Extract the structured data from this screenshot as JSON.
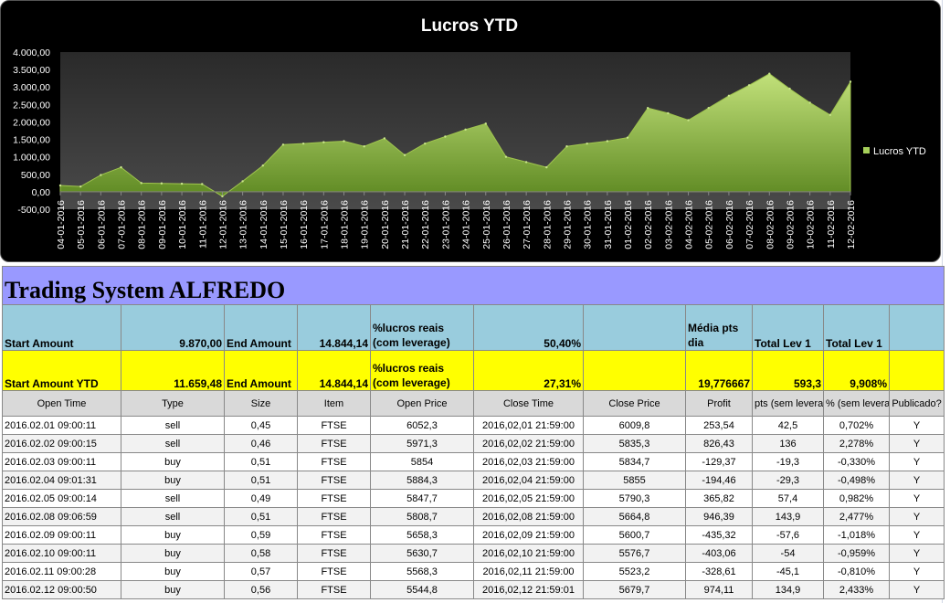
{
  "chart_data": {
    "type": "area",
    "title": "Lucros YTD",
    "legend": {
      "position": "right",
      "entries": [
        "Lucros YTD"
      ]
    },
    "ylim": [
      -500,
      4000
    ],
    "y_ticks": [
      "4.000,00",
      "3.500,00",
      "3.000,00",
      "2.500,00",
      "2.000,00",
      "1.500,00",
      "1.000,00",
      "500,00",
      "0,00",
      "-500,00"
    ],
    "y_tick_values": [
      4000,
      3500,
      3000,
      2500,
      2000,
      1500,
      1000,
      500,
      0,
      -500
    ],
    "x": [
      "04-01-2016",
      "05-01-2016",
      "06-01-2016",
      "07-01-2016",
      "08-01-2016",
      "09-01-2016",
      "10-01-2016",
      "11-01-2016",
      "12-01-2016",
      "13-01-2016",
      "14-01-2016",
      "15-01-2016",
      "16-01-2016",
      "17-01-2016",
      "18-01-2016",
      "19-01-2016",
      "20-01-2016",
      "21-01-2016",
      "22-01-2016",
      "23-01-2016",
      "24-01-2016",
      "25-01-2016",
      "26-01-2016",
      "27-01-2016",
      "28-01-2016",
      "29-01-2016",
      "30-01-2016",
      "31-01-2016",
      "01-02-2016",
      "02-02-2016",
      "03-02-2016",
      "04-02-2016",
      "05-02-2016",
      "06-02-2016",
      "07-02-2016",
      "08-02-2016",
      "09-02-2016",
      "10-02-2016",
      "11-02-2016",
      "12-02-2016"
    ],
    "series": [
      {
        "name": "Lucros YTD",
        "values": [
          180,
          150,
          480,
          700,
          250,
          240,
          230,
          220,
          -130,
          300,
          750,
          1350,
          1380,
          1420,
          1450,
          1300,
          1530,
          1050,
          1380,
          1580,
          1780,
          1950,
          1000,
          850,
          700,
          1300,
          1380,
          1450,
          1550,
          2400,
          2250,
          2050,
          2400,
          2750,
          3050,
          3380,
          2950,
          2550,
          2200,
          3150
        ]
      }
    ],
    "grid": false,
    "colors": {
      "fill_top": "#b5d96a",
      "fill_bottom": "#5f8a23",
      "plot_bg": "#3a3a3a",
      "background": "#000000"
    }
  },
  "sheet": {
    "title": "Trading System ALFREDO",
    "summary": {
      "row1": {
        "start_label": "Start Amount",
        "start_value": "9.870,00",
        "end_label": "End Amount",
        "end_value": "14.844,14",
        "pct_label": "%lucros reais (com leverage)",
        "pct_value": "50,40%",
        "media_label": "Média pts dia",
        "total1_label": "Total Lev 1",
        "total2_label": "Total Lev 1"
      },
      "row2": {
        "start_label": "Start Amount YTD",
        "start_value": "11.659,48",
        "end_label": "End Amount",
        "end_value": "14.844,14",
        "pct_label": "%lucros reais (com leverage)",
        "pct_value": "27,31%",
        "media_value": "19,776667",
        "total1_value": "593,3",
        "total2_value": "9,908%"
      }
    },
    "columns": [
      "Open Time",
      "Type",
      "Size",
      "Item",
      "Open Price",
      "Close Time",
      "Close Price",
      "Profit",
      "pts (sem leverage)",
      "% (sem leverage)",
      "Publicado?"
    ],
    "rows": [
      [
        "2016.02.01 09:00:11",
        "sell",
        "0,45",
        "FTSE",
        "6052,3",
        "2016,02,01 21:59:00",
        "6009,8",
        "253,54",
        "42,5",
        "0,702%",
        "Y"
      ],
      [
        "2016.02.02 09:00:15",
        "sell",
        "0,46",
        "FTSE",
        "5971,3",
        "2016,02,02 21:59:00",
        "5835,3",
        "826,43",
        "136",
        "2,278%",
        "Y"
      ],
      [
        "2016.02.03 09:00:11",
        "buy",
        "0,51",
        "FTSE",
        "5854",
        "2016,02,03 21:59:00",
        "5834,7",
        "-129,37",
        "-19,3",
        "-0,330%",
        "Y"
      ],
      [
        "2016.02.04 09:01:31",
        "buy",
        "0,51",
        "FTSE",
        "5884,3",
        "2016,02,04 21:59:00",
        "5855",
        "-194,46",
        "-29,3",
        "-0,498%",
        "Y"
      ],
      [
        "2016.02.05 09:00:14",
        "sell",
        "0,49",
        "FTSE",
        "5847,7",
        "2016,02,05 21:59:00",
        "5790,3",
        "365,82",
        "57,4",
        "0,982%",
        "Y"
      ],
      [
        "2016.02.08 09:06:59",
        "sell",
        "0,51",
        "FTSE",
        "5808,7",
        "2016,02,08 21:59:00",
        "5664,8",
        "946,39",
        "143,9",
        "2,477%",
        "Y"
      ],
      [
        "2016.02.09 09:00:11",
        "buy",
        "0,59",
        "FTSE",
        "5658,3",
        "2016,02,09 21:59:00",
        "5600,7",
        "-435,32",
        "-57,6",
        "-1,018%",
        "Y"
      ],
      [
        "2016.02.10 09:00:11",
        "buy",
        "0,58",
        "FTSE",
        "5630,7",
        "2016,02,10 21:59:00",
        "5576,7",
        "-403,06",
        "-54",
        "-0,959%",
        "Y"
      ],
      [
        "2016.02.11 09:00:28",
        "buy",
        "0,57",
        "FTSE",
        "5568,3",
        "2016,02,11 21:59:00",
        "5523,2",
        "-328,61",
        "-45,1",
        "-0,810%",
        "Y"
      ],
      [
        "2016.02.12 09:00:50",
        "buy",
        "0,56",
        "FTSE",
        "5544,8",
        "2016,02,12 21:59:01",
        "5679,7",
        "974,11",
        "134,9",
        "2,433%",
        "Y"
      ]
    ]
  }
}
